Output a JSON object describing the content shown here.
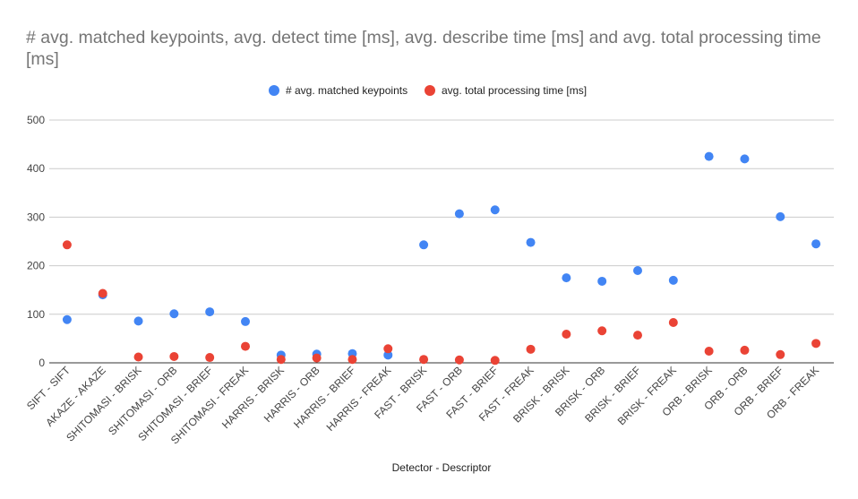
{
  "chart_data": {
    "type": "scatter",
    "title": "# avg. matched keypoints, avg. detect time [ms], avg. describe time [ms] and avg. total processing time [ms]",
    "xlabel": "Detector - Descriptor",
    "ylabel": "",
    "ylim": [
      0,
      500
    ],
    "yticks": [
      0,
      100,
      200,
      300,
      400,
      500
    ],
    "grid": true,
    "legend_position": "top",
    "categories": [
      "SIFT - SIFT",
      "AKAZE - AKAZE",
      "SHITOMASI - BRISK",
      "SHITOMASI - ORB",
      "SHITOMASI - BRIEF",
      "SHITOMASI - FREAK",
      "HARRIS - BRISK",
      "HARRIS - ORB",
      "HARRIS - BRIEF",
      "HARRIS - FREAK",
      "FAST - BRISK",
      "FAST - ORB",
      "FAST - BRIEF",
      "FAST - FREAK",
      "BRISK - BRISK",
      "BRISK - ORB",
      "BRISK - BRIEF",
      "BRISK - FREAK",
      "ORB - BRISK",
      "ORB - ORB",
      "ORB - BRIEF",
      "ORB - FREAK"
    ],
    "series": [
      {
        "name": "# avg. matched keypoints",
        "color": "#4285f4",
        "values": [
          89,
          140,
          86,
          101,
          105,
          85,
          16,
          18,
          19,
          16,
          243,
          307,
          315,
          248,
          175,
          168,
          190,
          170,
          425,
          420,
          301,
          245
        ]
      },
      {
        "name": "avg. total processing time [ms]",
        "color": "#ea4335",
        "values": [
          243,
          143,
          12,
          13,
          11,
          34,
          7,
          10,
          7,
          29,
          7,
          6,
          5,
          28,
          59,
          66,
          57,
          83,
          24,
          26,
          17,
          40
        ]
      }
    ]
  }
}
